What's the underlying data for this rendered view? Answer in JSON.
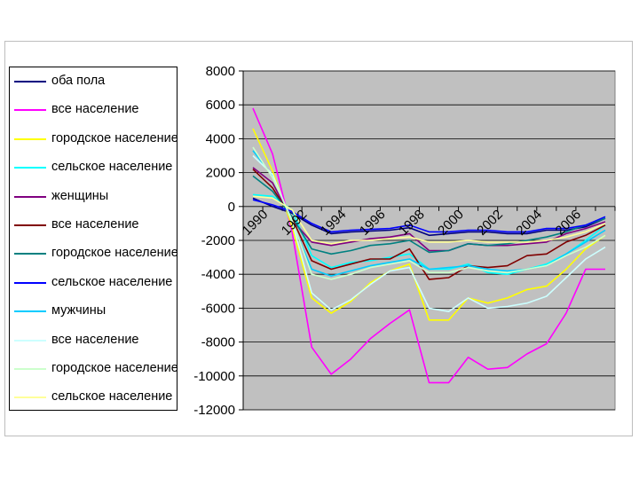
{
  "chart_data": {
    "type": "line",
    "title": "",
    "xlabel": "",
    "ylabel": "",
    "x": [
      1990,
      1991,
      1992,
      1993,
      1994,
      1995,
      1996,
      1997,
      1998,
      1999,
      2000,
      2001,
      2002,
      2003,
      2004,
      2005,
      2006,
      2007,
      2008
    ],
    "x_tick_labels": [
      "1990",
      "1992",
      "1994",
      "1996",
      "1998",
      "2000",
      "2002",
      "2004",
      "2006"
    ],
    "ylim": [
      -12000,
      8000
    ],
    "y_ticks": [
      8000,
      6000,
      4000,
      2000,
      0,
      -2000,
      -4000,
      -6000,
      -8000,
      -10000,
      -12000
    ],
    "grid": "horizontal",
    "legend_position": "left",
    "plot_background": "#c0c0c0",
    "series": [
      {
        "name": "оба пола",
        "color": "#000080",
        "values": [
          500,
          0,
          -400,
          -1100,
          -1600,
          -1500,
          -1450,
          -1400,
          -1250,
          -1700,
          -1600,
          -1500,
          -1500,
          -1600,
          -1600,
          -1400,
          -1400,
          -1200,
          -700
        ]
      },
      {
        "name": "все население",
        "color": "#ff00ff",
        "values": [
          5800,
          3100,
          -1500,
          -8300,
          -9900,
          -9000,
          -7800,
          -6900,
          -6100,
          -10400,
          -10400,
          -8900,
          -9600,
          -9500,
          -8700,
          -8100,
          -6300,
          -3700,
          -3700
        ]
      },
      {
        "name": "городское население",
        "color": "#ffff00",
        "values": [
          4600,
          2100,
          -1200,
          -5400,
          -6300,
          -5600,
          -4500,
          -3800,
          -3400,
          -6700,
          -6700,
          -5400,
          -5700,
          -5400,
          -4900,
          -4700,
          -3700,
          -2500,
          -1700
        ]
      },
      {
        "name": "сельское население",
        "color": "#00ffff",
        "values": [
          700,
          600,
          -200,
          -2900,
          -3600,
          -3300,
          -3200,
          -3000,
          -2800,
          -3700,
          -3700,
          -3400,
          -3900,
          -4000,
          -3700,
          -3400,
          -2800,
          -2000,
          -1100
        ]
      },
      {
        "name": "женщины",
        "color": "#800080",
        "values": [
          2300,
          1400,
          -800,
          -2100,
          -2300,
          -2100,
          -1900,
          -1800,
          -1600,
          -2600,
          -2600,
          -2200,
          -2300,
          -2300,
          -2200,
          -2100,
          -1600,
          -1300,
          -900
        ]
      },
      {
        "name": "все население",
        "color": "#800000",
        "values": [
          2200,
          1100,
          -700,
          -3200,
          -3700,
          -3400,
          -3100,
          -3100,
          -2500,
          -4300,
          -4200,
          -3500,
          -3600,
          -3500,
          -2900,
          -2800,
          -2100,
          -1700,
          -1100
        ]
      },
      {
        "name": "городское население",
        "color": "#008080",
        "values": [
          1800,
          900,
          -600,
          -2500,
          -2800,
          -2600,
          -2300,
          -2200,
          -2000,
          -2700,
          -2600,
          -2200,
          -2300,
          -2200,
          -2000,
          -1800,
          -1500,
          -1100,
          -700
        ]
      },
      {
        "name": "сельское население",
        "color": "#0000ff",
        "values": [
          400,
          100,
          -300,
          -1000,
          -1500,
          -1400,
          -1350,
          -1300,
          -1100,
          -1500,
          -1500,
          -1400,
          -1400,
          -1500,
          -1500,
          -1300,
          -1300,
          -1100,
          -600
        ]
      },
      {
        "name": "мужчины",
        "color": "#00ccff",
        "values": [
          3300,
          1800,
          -900,
          -3700,
          -4100,
          -3800,
          -3500,
          -3300,
          -3100,
          -3700,
          -3600,
          -3500,
          -3700,
          -3800,
          -3700,
          -3500,
          -2800,
          -2100,
          -1400
        ]
      },
      {
        "name": "все население",
        "color": "#ccffff",
        "values": [
          3000,
          1900,
          -900,
          -5100,
          -6100,
          -5500,
          -4600,
          -3800,
          -3600,
          -6000,
          -6200,
          -5400,
          -6000,
          -5900,
          -5700,
          -5300,
          -4200,
          -3100,
          -2400
        ]
      },
      {
        "name": "городское население",
        "color": "#ccffcc",
        "values": [
          3500,
          1700,
          -800,
          -4000,
          -4300,
          -4000,
          -3600,
          -3400,
          -3200,
          -3900,
          -3900,
          -3600,
          -3800,
          -3900,
          -3700,
          -3500,
          -2900,
          -2400,
          -1700
        ]
      },
      {
        "name": "сельское население",
        "color": "#ffff99",
        "values": [
          600,
          500,
          -200,
          -2000,
          -2200,
          -2000,
          -2000,
          -1900,
          -1800,
          -2100,
          -2100,
          -2000,
          -2100,
          -2100,
          -2100,
          -2000,
          -1800,
          -1500,
          -1000
        ]
      }
    ]
  }
}
